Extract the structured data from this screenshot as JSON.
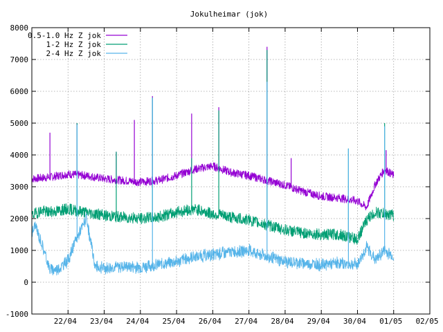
{
  "chart_data": {
    "type": "line",
    "title": "Jokulheimar (jok)",
    "xlabel": "",
    "ylabel": "",
    "x_ticks": [
      "22/04",
      "23/04",
      "24/04",
      "25/04",
      "26/04",
      "27/04",
      "28/04",
      "29/04",
      "30/04",
      "01/05",
      "02/05"
    ],
    "xlim": [
      "21/04 00:00",
      "02/05 00:00"
    ],
    "ylim": [
      -1000,
      8000
    ],
    "y_ticks": [
      -1000,
      0,
      1000,
      2000,
      3000,
      4000,
      5000,
      6000,
      7000,
      8000
    ],
    "grid": true,
    "legend_position": "top-left",
    "series": [
      {
        "name": "0.5-1.0 Hz Z jok",
        "color": "#9400d3",
        "x": [
          "21/04 00:00",
          "21/04 12:00",
          "22/04 00:00",
          "22/04 12:00",
          "23/04 00:00",
          "23/04 12:00",
          "24/04 00:00",
          "24/04 12:00",
          "25/04 00:00",
          "25/04 12:00",
          "26/04 00:00",
          "26/04 12:00",
          "27/04 00:00",
          "27/04 12:00",
          "28/04 00:00",
          "28/04 12:00",
          "29/04 00:00",
          "29/04 12:00",
          "30/04 00:00",
          "30/04 06:00",
          "30/04 12:00",
          "30/04 18:00",
          "01/05 00:00"
        ],
        "y": [
          3250,
          3300,
          3400,
          3350,
          3250,
          3200,
          3150,
          3200,
          3350,
          3550,
          3650,
          3450,
          3350,
          3200,
          3050,
          2850,
          2700,
          2650,
          2550,
          2350,
          3100,
          3550,
          3350
        ],
        "spikes": [
          [
            "21/04 12:00",
            4700
          ],
          [
            "22/04 06:00",
            5000
          ],
          [
            "23/04 08:00",
            4100
          ],
          [
            "23/04 20:00",
            5100
          ],
          [
            "24/04 08:00",
            5850
          ],
          [
            "25/04 10:00",
            5300
          ],
          [
            "26/04 04:00",
            5500
          ],
          [
            "27/04 12:00",
            7400
          ],
          [
            "28/04 04:00",
            3900
          ],
          [
            "30/04 19:00",
            4150
          ]
        ]
      },
      {
        "name": "1-2 Hz Z jok",
        "color": "#009e73",
        "x": [
          "21/04 00:00",
          "21/04 06:00",
          "21/04 12:00",
          "22/04 00:00",
          "22/04 12:00",
          "23/04 00:00",
          "23/04 12:00",
          "24/04 00:00",
          "24/04 12:00",
          "25/04 00:00",
          "25/04 12:00",
          "26/04 00:00",
          "26/04 12:00",
          "27/04 00:00",
          "27/04 12:00",
          "28/04 00:00",
          "28/04 12:00",
          "29/04 00:00",
          "29/04 12:00",
          "30/04 00:00",
          "30/04 06:00",
          "30/04 12:00",
          "30/04 18:00",
          "01/05 00:00"
        ],
        "y": [
          2100,
          2250,
          2200,
          2300,
          2200,
          2100,
          2050,
          2000,
          2050,
          2200,
          2300,
          2150,
          2050,
          1950,
          1800,
          1650,
          1550,
          1500,
          1500,
          1350,
          1950,
          2200,
          2150,
          2100
        ],
        "spikes": [
          [
            "22/04 06:00",
            5000
          ],
          [
            "23/04 08:00",
            4100
          ],
          [
            "24/04 08:00",
            5800
          ],
          [
            "25/04 10:00",
            3900
          ],
          [
            "26/04 04:00",
            5400
          ],
          [
            "27/04 12:00",
            7300
          ],
          [
            "29/04 18:00",
            4200
          ],
          [
            "30/04 18:00",
            5000
          ]
        ]
      },
      {
        "name": "2-4 Hz Z jok",
        "color": "#56b4e9",
        "x": [
          "21/04 00:00",
          "21/04 02:00",
          "21/04 06:00",
          "21/04 12:00",
          "21/04 18:00",
          "22/04 00:00",
          "22/04 06:00",
          "22/04 12:00",
          "22/04 18:00",
          "23/04 00:00",
          "23/04 12:00",
          "24/04 00:00",
          "24/04 12:00",
          "25/04 00:00",
          "25/04 12:00",
          "26/04 00:00",
          "26/04 12:00",
          "27/04 00:00",
          "27/04 12:00",
          "28/04 00:00",
          "28/04 12:00",
          "29/04 00:00",
          "29/04 12:00",
          "30/04 00:00",
          "30/04 06:00",
          "30/04 12:00",
          "30/04 18:00",
          "01/05 00:00"
        ],
        "y": [
          1500,
          1800,
          1300,
          400,
          420,
          700,
          1400,
          2000,
          500,
          450,
          500,
          480,
          550,
          650,
          800,
          850,
          950,
          1000,
          800,
          650,
          600,
          550,
          600,
          550,
          1100,
          700,
          1000,
          800
        ],
        "spikes": [
          [
            "22/04 06:00",
            4950
          ],
          [
            "24/04 08:00",
            5800
          ],
          [
            "27/04 12:00",
            6300
          ],
          [
            "29/04 18:00",
            4200
          ],
          [
            "30/04 18:00",
            4900
          ]
        ]
      }
    ]
  }
}
